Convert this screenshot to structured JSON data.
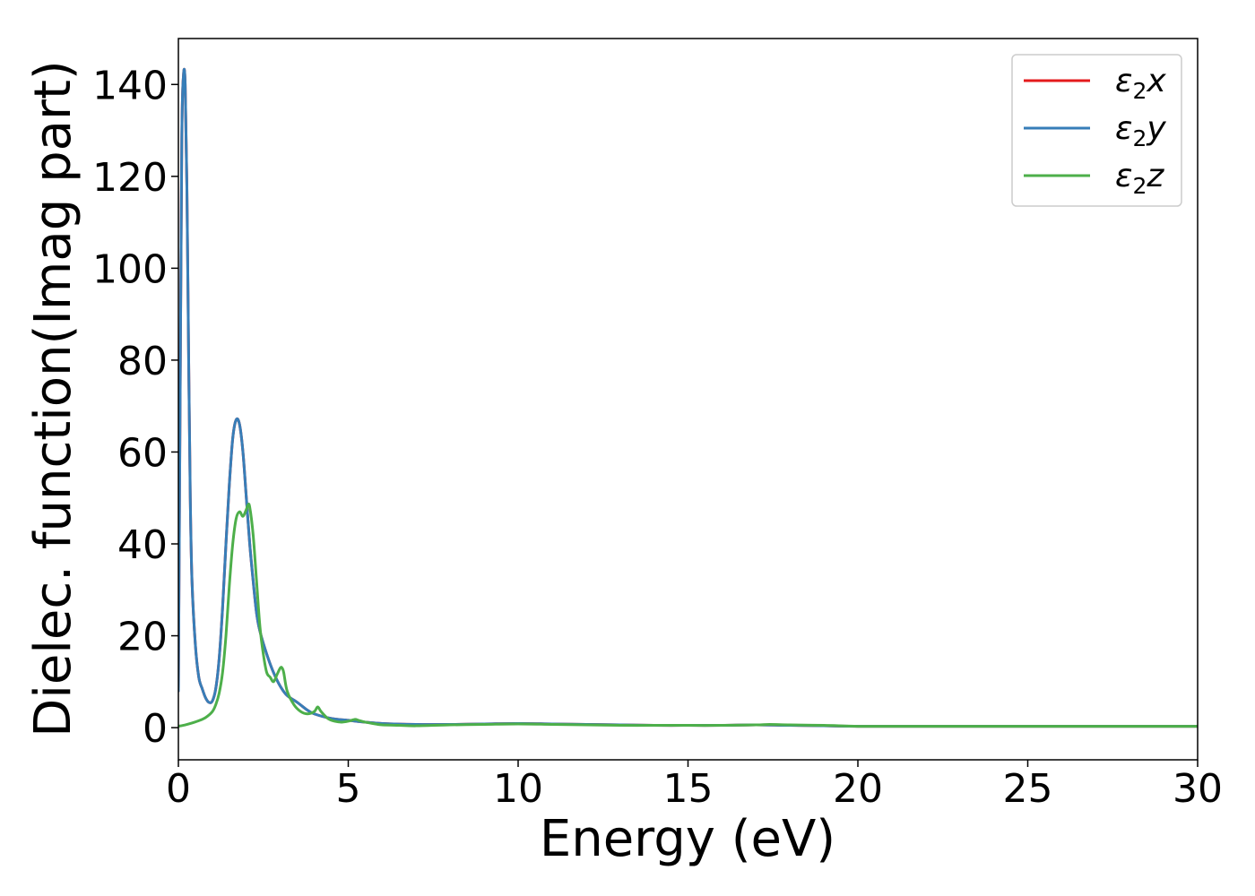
{
  "chart_data": {
    "type": "line",
    "title": "",
    "xlabel": "Energy (eV)",
    "ylabel": "Dielec. function(Imag part)",
    "xlim": [
      0,
      30
    ],
    "ylim": [
      -7,
      150
    ],
    "xticks": [
      0,
      5,
      10,
      15,
      20,
      25,
      30
    ],
    "yticks": [
      0,
      20,
      40,
      60,
      80,
      100,
      120,
      140
    ],
    "grid": false,
    "legend_position": "top-right",
    "series": [
      {
        "name": "ε₂x",
        "name_parts": {
          "base": "ε",
          "sub": "2",
          "axis": "x"
        },
        "color": "#e41a1c",
        "x": [
          0,
          0.05,
          0.1,
          0.15,
          0.2,
          0.25,
          0.3,
          0.35,
          0.4,
          0.5,
          0.6,
          0.7,
          0.8,
          0.9,
          1.0,
          1.1,
          1.2,
          1.3,
          1.4,
          1.5,
          1.6,
          1.7,
          1.8,
          1.9,
          2.0,
          2.1,
          2.2,
          2.3,
          2.4,
          2.6,
          2.8,
          3.0,
          3.2,
          3.5,
          3.8,
          4.0,
          4.5,
          5.0,
          5.5,
          6.0,
          7.0,
          8.0,
          9.0,
          10.0,
          11.0,
          12.0,
          13.0,
          14.0,
          15.0,
          16.0,
          17.0,
          18.0,
          19.0,
          20.0,
          21.0,
          22.0,
          23.0,
          24.0,
          25.0,
          26.0,
          27.0,
          28.0,
          29.0,
          30.0
        ],
        "y": [
          8,
          70,
          128,
          142,
          140,
          118,
          82,
          50,
          32,
          18,
          11,
          8.5,
          6.5,
          5.5,
          5.8,
          8.5,
          15,
          26,
          40,
          53,
          63,
          67,
          66,
          60,
          50,
          40,
          32,
          25,
          21,
          16,
          12,
          9,
          7,
          5.5,
          3.8,
          3,
          2,
          1.6,
          1.2,
          0.9,
          0.7,
          0.7,
          0.8,
          0.9,
          0.8,
          0.7,
          0.6,
          0.5,
          0.5,
          0.5,
          0.6,
          0.5,
          0.4,
          0.3,
          0.3,
          0.3,
          0.3,
          0.3,
          0.3,
          0.3,
          0.3,
          0.3,
          0.3,
          0.3
        ]
      },
      {
        "name": "ε₂y",
        "name_parts": {
          "base": "ε",
          "sub": "2",
          "axis": "y"
        },
        "color": "#377eb8",
        "x": [
          0,
          0.05,
          0.1,
          0.15,
          0.2,
          0.25,
          0.3,
          0.35,
          0.4,
          0.5,
          0.6,
          0.7,
          0.8,
          0.9,
          1.0,
          1.1,
          1.2,
          1.3,
          1.4,
          1.5,
          1.6,
          1.7,
          1.8,
          1.9,
          2.0,
          2.1,
          2.2,
          2.3,
          2.4,
          2.6,
          2.8,
          3.0,
          3.2,
          3.5,
          3.8,
          4.0,
          4.5,
          5.0,
          5.5,
          6.0,
          7.0,
          8.0,
          9.0,
          10.0,
          11.0,
          12.0,
          13.0,
          14.0,
          15.0,
          16.0,
          17.0,
          18.0,
          19.0,
          20.0,
          21.0,
          22.0,
          23.0,
          24.0,
          25.0,
          26.0,
          27.0,
          28.0,
          29.0,
          30.0
        ],
        "y": [
          8,
          70,
          128,
          142,
          140,
          118,
          82,
          50,
          32,
          18,
          11,
          8.5,
          6.5,
          5.5,
          5.8,
          8.5,
          15,
          26,
          40,
          53,
          63,
          67,
          66,
          60,
          50,
          40,
          32,
          25,
          21,
          16,
          12,
          9,
          7,
          5.5,
          3.8,
          3,
          2,
          1.6,
          1.2,
          0.9,
          0.7,
          0.7,
          0.8,
          0.9,
          0.8,
          0.7,
          0.6,
          0.5,
          0.5,
          0.5,
          0.6,
          0.5,
          0.4,
          0.3,
          0.3,
          0.3,
          0.3,
          0.3,
          0.3,
          0.3,
          0.3,
          0.3,
          0.3,
          0.3
        ]
      },
      {
        "name": "ε₂z",
        "name_parts": {
          "base": "ε",
          "sub": "2",
          "axis": "z"
        },
        "color": "#4daf4a",
        "x": [
          0,
          0.2,
          0.4,
          0.6,
          0.8,
          1.0,
          1.1,
          1.2,
          1.3,
          1.4,
          1.5,
          1.6,
          1.7,
          1.8,
          1.9,
          2.0,
          2.05,
          2.1,
          2.2,
          2.3,
          2.4,
          2.5,
          2.6,
          2.7,
          2.8,
          2.9,
          3.0,
          3.05,
          3.1,
          3.2,
          3.4,
          3.6,
          3.8,
          4.0,
          4.1,
          4.2,
          4.4,
          4.6,
          4.8,
          5.0,
          5.2,
          5.3,
          5.5,
          5.8,
          6.0,
          6.5,
          7.0,
          8.0,
          9.0,
          10.0,
          11.0,
          12.0,
          13.0,
          14.0,
          15.0,
          16.0,
          17.0,
          17.4,
          18.0,
          19.0,
          20.0,
          21.0,
          22.0,
          24.0,
          26.0,
          28.0,
          30.0
        ],
        "y": [
          0.3,
          0.6,
          1.0,
          1.5,
          2.2,
          3.5,
          5,
          7.5,
          12,
          20,
          31,
          40,
          45.5,
          47,
          46,
          47.5,
          48.5,
          48,
          42,
          32,
          22,
          16,
          12,
          11,
          10,
          11.5,
          13,
          13,
          12,
          8,
          5,
          3.5,
          3,
          3.5,
          4.5,
          3.5,
          2,
          1.4,
          1.2,
          1.4,
          1.8,
          1.6,
          1.2,
          0.8,
          0.6,
          0.5,
          0.4,
          0.6,
          0.7,
          0.8,
          0.7,
          0.6,
          0.5,
          0.5,
          0.5,
          0.5,
          0.6,
          0.7,
          0.6,
          0.5,
          0.3,
          0.3,
          0.3,
          0.3,
          0.3,
          0.3,
          0.3
        ]
      }
    ]
  }
}
